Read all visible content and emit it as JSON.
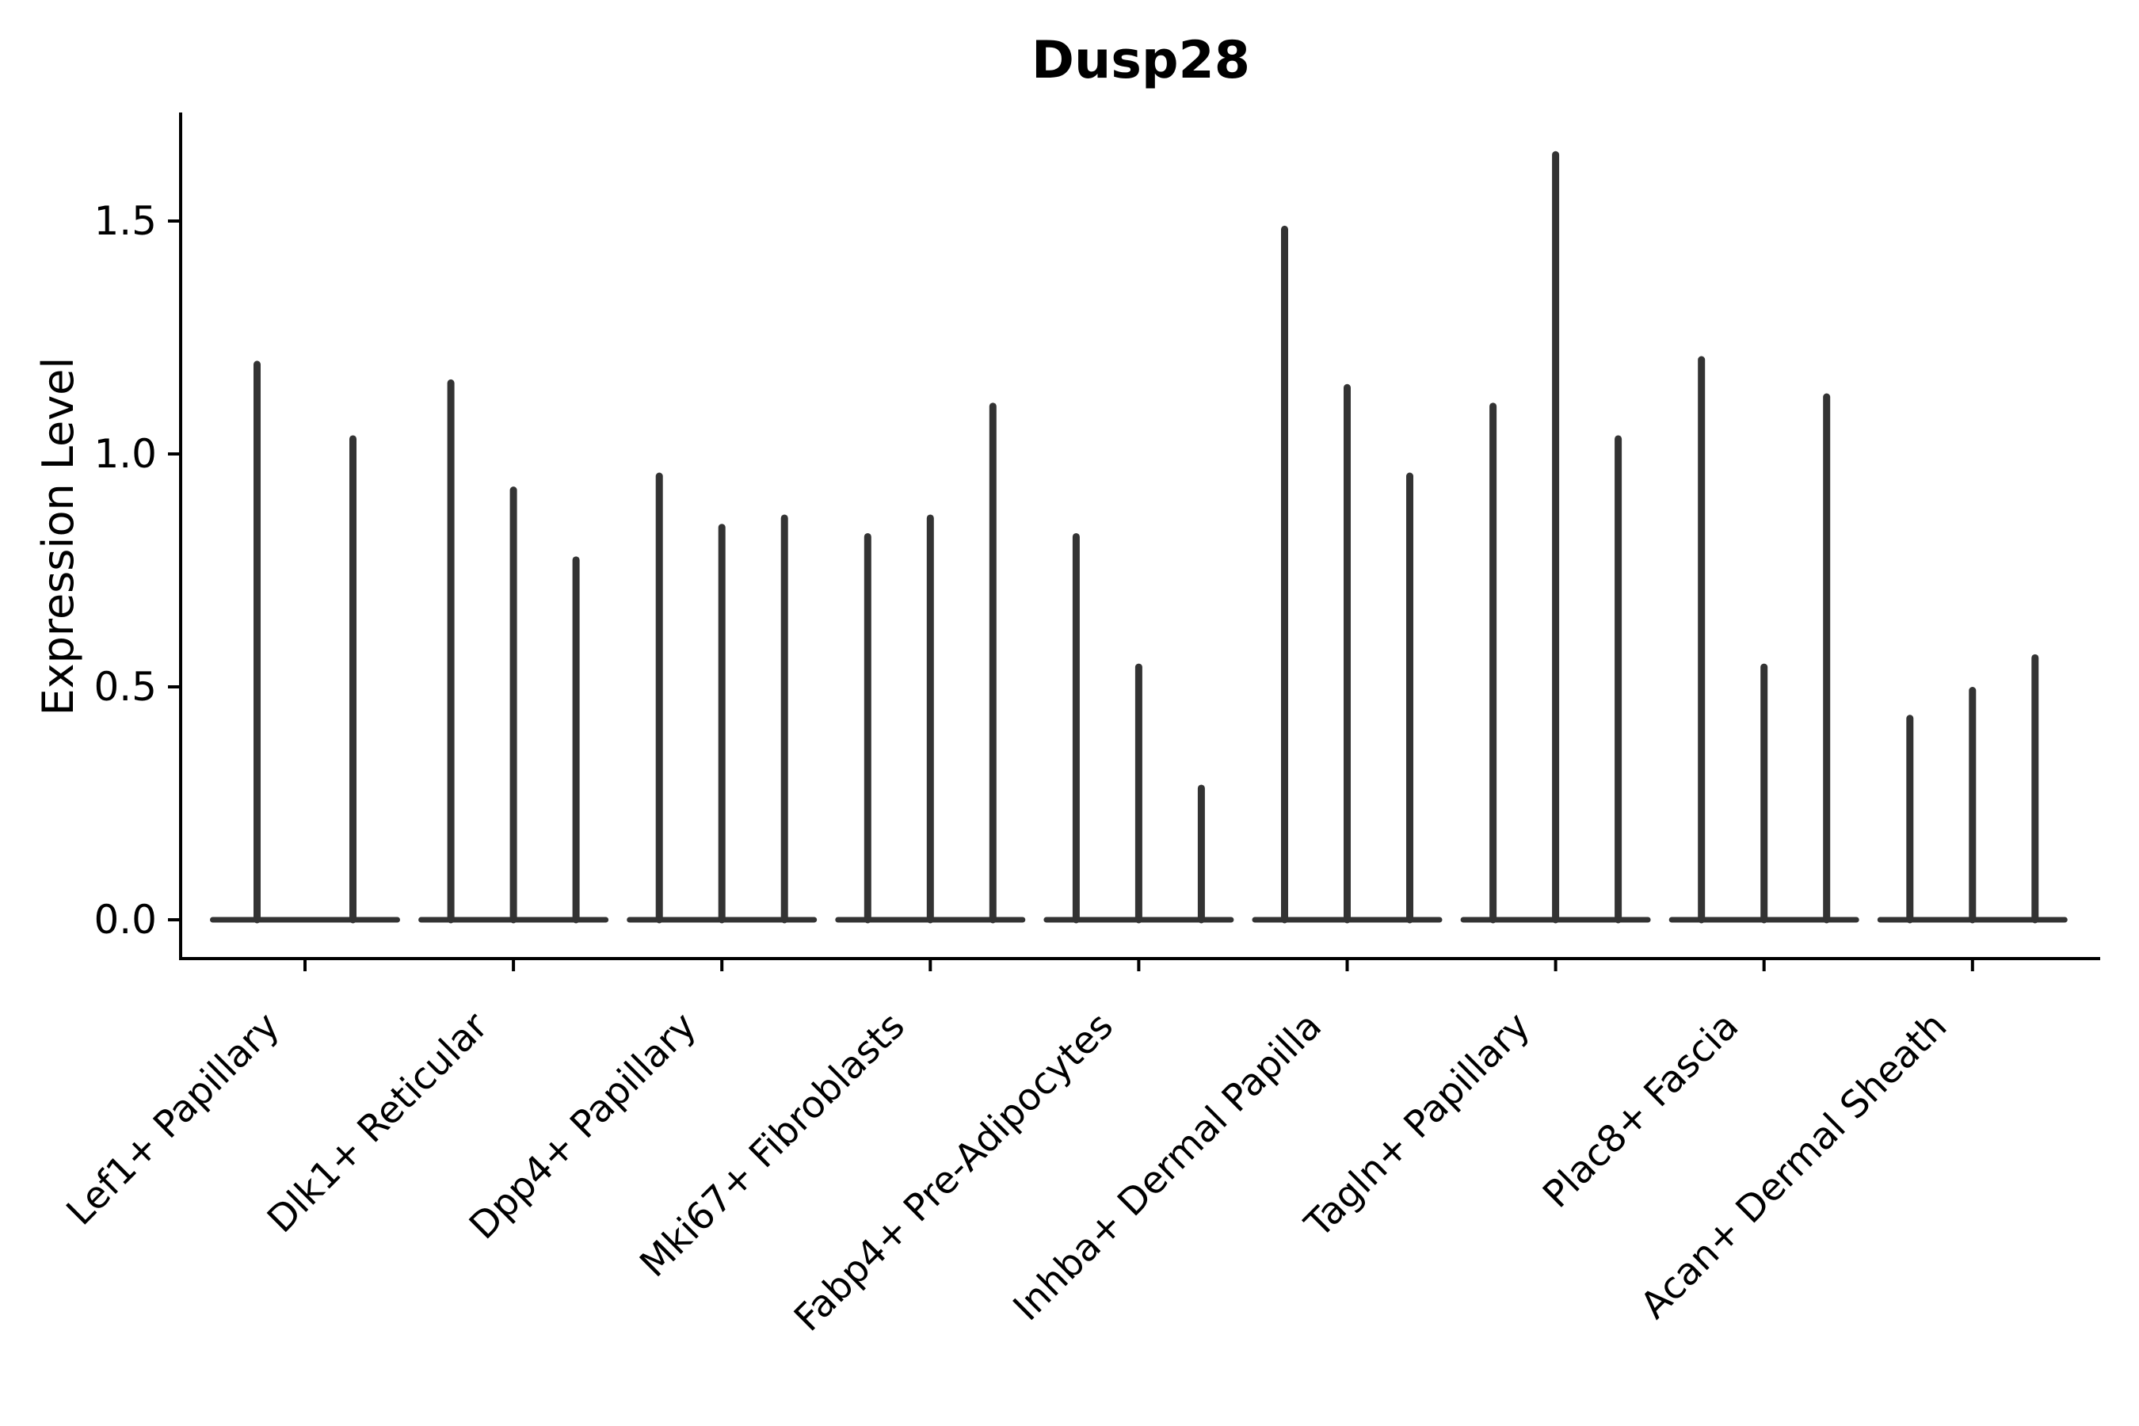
{
  "title": "Dusp28",
  "axes": {
    "ylabel": "Expression Level",
    "ytick_labels": [
      "0.0",
      "0.5",
      "1.0",
      "1.5"
    ]
  },
  "colors": {
    "violin": "#333333",
    "axis": "#000000",
    "background": "#ffffff"
  },
  "chart_data": {
    "type": "violin",
    "title": "Dusp28",
    "xlabel": "",
    "ylabel": "Expression Level",
    "categories": [
      "Lef1+ Papillary",
      "Dlk1+ Reticular",
      "Dpp4+ Papillary",
      "Mki67+ Fibroblasts",
      "Fabp4+ Pre-Adipocytes",
      "Inhba+ Dermal Papilla",
      "Tagln+ Papillary",
      "Plac8+ Fascia",
      "Acan+ Dermal Sheath"
    ],
    "violins": [
      {
        "category": "Lef1+ Papillary",
        "peak_expression": [
          1.2,
          1.04
        ]
      },
      {
        "category": "Dlk1+ Reticular",
        "peak_expression": [
          1.16,
          0.93,
          0.78
        ]
      },
      {
        "category": "Dpp4+ Papillary",
        "peak_expression": [
          0.96,
          0.85,
          0.87
        ]
      },
      {
        "category": "Mki67+ Fibroblasts",
        "peak_expression": [
          0.83,
          0.87,
          1.11
        ]
      },
      {
        "category": "Fabp4+ Pre-Adipocytes",
        "peak_expression": [
          0.83,
          0.55,
          0.29
        ]
      },
      {
        "category": "Inhba+ Dermal Papilla",
        "peak_expression": [
          1.49,
          1.15,
          0.96
        ]
      },
      {
        "category": "Tagln+ Papillary",
        "peak_expression": [
          1.11,
          1.65,
          1.04
        ]
      },
      {
        "category": "Plac8+ Fascia",
        "peak_expression": [
          1.21,
          0.55,
          1.13
        ]
      },
      {
        "category": "Acan+ Dermal Sheath",
        "peak_expression": [
          0.44,
          0.5,
          0.57
        ]
      }
    ],
    "description": "Each category shows 2-3 needle-thin violins: a flat base at expression 0 and a thin spike reaching the listed peak expression value.",
    "yticks": [
      0,
      0.5,
      1,
      1.5
    ],
    "ylim": [
      -0.08,
      1.73
    ],
    "grid": false,
    "legend": null,
    "xtick_rotation": 45
  }
}
